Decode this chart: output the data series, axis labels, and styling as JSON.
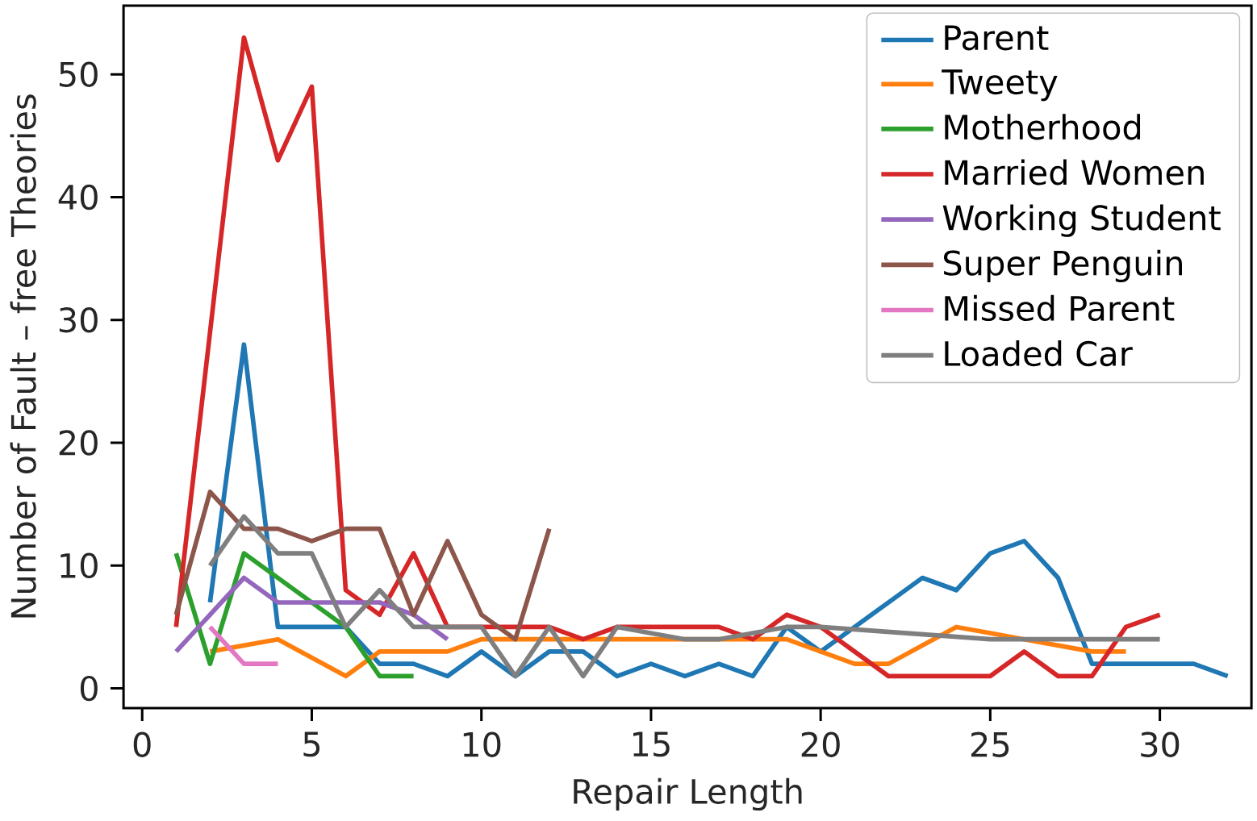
{
  "chart_data": {
    "type": "line",
    "xlabel": "Repair Length",
    "ylabel": "Number of Fault – free Theories",
    "xlim": [
      -0.55,
      32.7
    ],
    "ylim": [
      -1.6,
      55.6
    ],
    "xticks": [
      0,
      5,
      10,
      15,
      20,
      25,
      30
    ],
    "yticks": [
      0,
      10,
      20,
      30,
      40,
      50
    ],
    "legend": "top right",
    "grid": false,
    "series": [
      {
        "name": "Parent",
        "color": "#1f77b4",
        "x": [
          2,
          3,
          4,
          5,
          6,
          7,
          8,
          9,
          10,
          11,
          12,
          13,
          14,
          15,
          16,
          17,
          18,
          19,
          20,
          21,
          22,
          23,
          24,
          25,
          26,
          27,
          28,
          29,
          30,
          31,
          32
        ],
        "values": [
          7,
          28,
          5,
          5,
          5,
          2,
          2,
          1,
          3,
          1,
          3,
          3,
          1,
          2,
          1,
          2,
          1,
          5,
          3,
          5,
          7,
          9,
          8,
          11,
          12,
          9,
          2,
          2,
          2,
          2,
          1
        ]
      },
      {
        "name": "Tweety",
        "color": "#ff7f0e",
        "x": [
          2,
          3,
          4,
          5,
          6,
          7,
          8,
          9,
          10,
          11,
          12,
          13,
          14,
          15,
          16,
          17,
          18,
          19,
          20,
          21,
          22,
          23,
          24,
          25,
          26,
          27,
          28,
          29
        ],
        "values": [
          3,
          3.5,
          4,
          2.5,
          1,
          3,
          3,
          3,
          4,
          4,
          4,
          4,
          4,
          4,
          4,
          4,
          4,
          4,
          3,
          2,
          2,
          3.5,
          5,
          4.5,
          4,
          3.5,
          3,
          3
        ]
      },
      {
        "name": "Motherhood",
        "color": "#2ca02c",
        "x": [
          1,
          2,
          3,
          4,
          5,
          6,
          7,
          8
        ],
        "values": [
          11,
          2,
          11,
          9,
          7,
          5,
          1,
          1
        ]
      },
      {
        "name": "Married Women",
        "color": "#d62728",
        "x": [
          1,
          2,
          3,
          4,
          5,
          6,
          7,
          8,
          9,
          10,
          11,
          12,
          13,
          14,
          15,
          16,
          17,
          18,
          19,
          20,
          21,
          22,
          23,
          24,
          25,
          26,
          27,
          28,
          29,
          30
        ],
        "values": [
          5,
          29,
          53,
          43,
          49,
          8,
          6,
          11,
          5,
          5,
          5,
          5,
          4,
          5,
          5,
          5,
          5,
          4,
          6,
          5,
          3,
          1,
          1,
          1,
          1,
          3,
          1,
          1,
          5,
          6
        ]
      },
      {
        "name": "Working Student",
        "color": "#9467bd",
        "x": [
          1,
          2,
          3,
          4,
          5,
          6,
          7,
          8,
          9
        ],
        "values": [
          3,
          6,
          9,
          7,
          7,
          7,
          7,
          6,
          4
        ]
      },
      {
        "name": "Super Penguin",
        "color": "#8c564b",
        "x": [
          1,
          2,
          3,
          4,
          5,
          6,
          7,
          8,
          9,
          10,
          11,
          12
        ],
        "values": [
          6,
          16,
          13,
          13,
          12,
          13,
          13,
          6,
          12,
          6,
          4,
          13
        ]
      },
      {
        "name": "Missed Parent",
        "color": "#e377c2",
        "x": [
          2,
          3,
          4
        ],
        "values": [
          5,
          2,
          2
        ]
      },
      {
        "name": "Loaded Car",
        "color": "#7f7f7f",
        "x": [
          2,
          3,
          4,
          5,
          6,
          7,
          8,
          9,
          10,
          11,
          12,
          13,
          14,
          15,
          16,
          17,
          18,
          19,
          20,
          25,
          30
        ],
        "values": [
          10,
          14,
          11,
          11,
          5,
          8,
          5,
          5,
          5,
          1,
          5,
          1,
          5,
          4.5,
          4,
          4,
          4.5,
          5,
          5,
          4,
          4
        ]
      }
    ]
  }
}
